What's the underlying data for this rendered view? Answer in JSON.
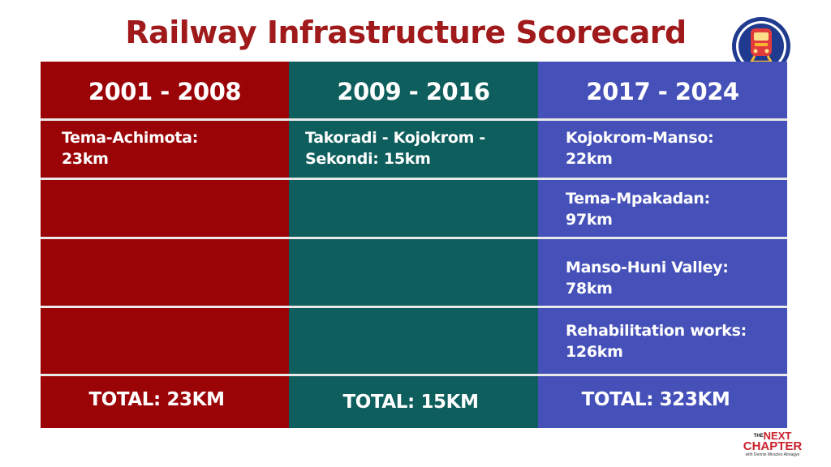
{
  "title": "Railway Infrastructure Scorecard",
  "badge_icon": "train-icon",
  "colors": {
    "title": "#a01a1c",
    "period1": "#9b0407",
    "period2": "#0d5e5c",
    "period3": "#4551b8"
  },
  "columns": [
    {
      "period": "2001 - 2008",
      "projects": [
        "Tema-Achimota:\n23km",
        "",
        "",
        ""
      ],
      "total": "TOTAL: 23KM"
    },
    {
      "period": "2009 - 2016",
      "projects": [
        "Takoradi - Kojokrom -\nSekondi: 15km",
        "",
        "",
        ""
      ],
      "total": "TOTAL: 15KM"
    },
    {
      "period": "2017 - 2024",
      "projects": [
        "Kojokrom-Manso:\n22km",
        "Tema-Mpakadan:\n97km",
        "Manso-Huni Valley:\n78km",
        "Rehabilitation works:\n126km"
      ],
      "total": "TOTAL: 323KM"
    }
  ],
  "logo": {
    "the": "THE",
    "next": "NEXT",
    "chapter": "CHAPTER",
    "tagline": "with Dennis Miracles Aboagye"
  }
}
